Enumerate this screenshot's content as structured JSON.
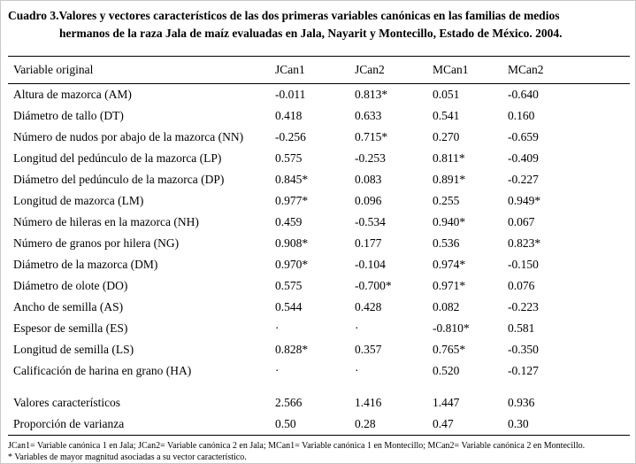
{
  "colors": {
    "background": "#ffffff",
    "text": "#000000",
    "rule": "#000000"
  },
  "caption": {
    "line1": "Cuadro 3.Valores y vectores característicos de las dos primeras variables canónicas en las familias de medios",
    "line2": "hermanos de la raza Jala de maíz evaluadas en Jala, Nayarit y Montecillo, Estado de México. 2004."
  },
  "table": {
    "headers": [
      "Variable original",
      "JCan1",
      "JCan2",
      "MCan1",
      "MCan2"
    ],
    "rows": [
      {
        "variable": "Altura de mazorca (AM)",
        "values": [
          "-0.011",
          "0.813*",
          "0.051",
          "-0.640"
        ]
      },
      {
        "variable": "Diámetro de tallo (DT)",
        "values": [
          "0.418",
          "0.633",
          "0.541",
          "0.160"
        ]
      },
      {
        "variable": "Número de nudos por abajo de la mazorca (NN)",
        "values": [
          "-0.256",
          "0.715*",
          "0.270",
          "-0.659"
        ]
      },
      {
        "variable": "Longitud del pedúnculo de la mazorca (LP)",
        "values": [
          "0.575",
          "-0.253",
          "0.811*",
          "-0.409"
        ]
      },
      {
        "variable": "Diámetro del pedúnculo de la mazorca (DP)",
        "values": [
          "0.845*",
          "0.083",
          "0.891*",
          "-0.227"
        ]
      },
      {
        "variable": "Longitud de mazorca (LM)",
        "values": [
          "0.977*",
          "0.096",
          "0.255",
          "0.949*"
        ]
      },
      {
        "variable": "Número de hileras en la mazorca (NH)",
        "values": [
          "0.459",
          "-0.534",
          "0.940*",
          "0.067"
        ]
      },
      {
        "variable": "Número de granos por hilera (NG)",
        "values": [
          "0.908*",
          "0.177",
          "0.536",
          "0.823*"
        ]
      },
      {
        "variable": "Diámetro de la mazorca (DM)",
        "values": [
          "0.970*",
          "-0.104",
          "0.974*",
          "-0.150"
        ]
      },
      {
        "variable": "Diámetro de olote (DO)",
        "values": [
          "0.575",
          "-0.700*",
          "0.971*",
          "0.076"
        ]
      },
      {
        "variable": "Ancho de semilla (AS)",
        "values": [
          "0.544",
          "0.428",
          "0.082",
          "-0.223"
        ]
      },
      {
        "variable": "Espesor de semilla (ES)",
        "values": [
          "·",
          "·",
          "-0.810*",
          "0.581"
        ]
      },
      {
        "variable": "Longitud de semilla (LS)",
        "values": [
          "0.828*",
          "0.357",
          "0.765*",
          "-0.350"
        ]
      },
      {
        "variable": "Calificación de harina en grano (HA)",
        "values": [
          "·",
          "·",
          "0.520",
          "-0.127"
        ]
      }
    ],
    "summary_rows": [
      {
        "variable": "Valores característicos",
        "values": [
          "2.566",
          "1.416",
          "1.447",
          "0.936"
        ]
      },
      {
        "variable": "Proporción de varianza",
        "values": [
          "0.50",
          "0.28",
          "0.47",
          "0.30"
        ]
      }
    ]
  },
  "footnotes": [
    "JCan1= Variable canónica 1 en Jala; JCan2= Variable canónica 2 en Jala; MCan1= Variable canónica 1 en Montecillo; MCan2= Variable canónica 2 en Montecillo.",
    "* Variables de mayor magnitud asociadas a su vector característico."
  ]
}
